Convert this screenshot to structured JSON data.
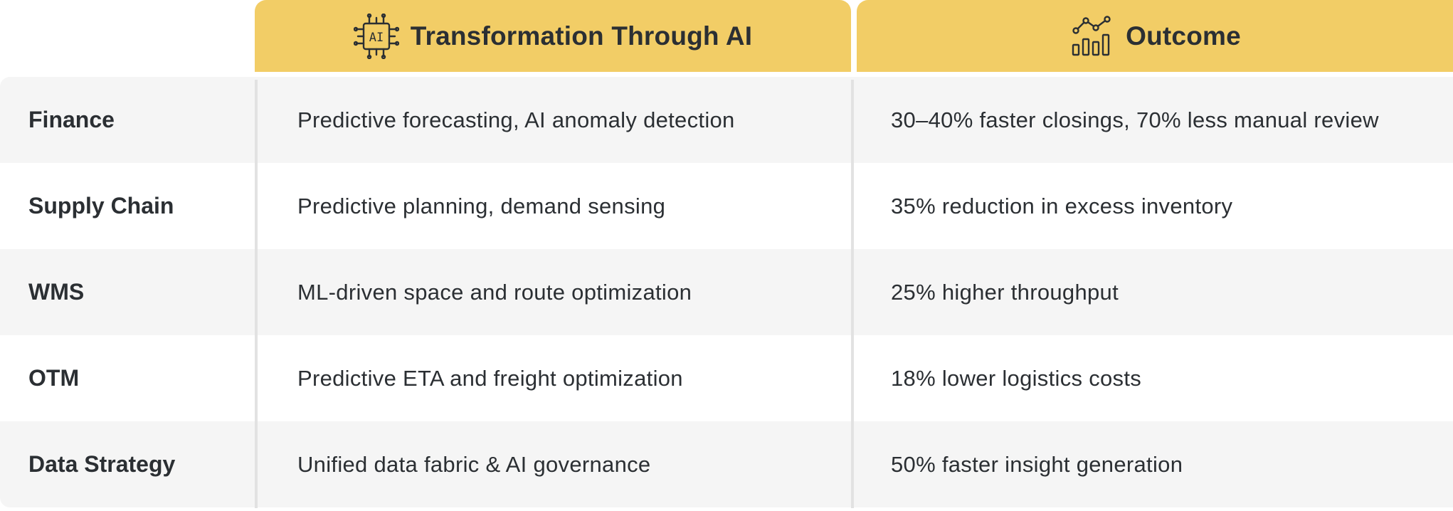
{
  "header": {
    "transformation": {
      "icon": "ai-chip-icon",
      "icon_text": "AI",
      "title": "Transformation Through AI"
    },
    "outcome": {
      "icon": "growth-chart-icon",
      "title": "Outcome"
    }
  },
  "rows": [
    {
      "area": "Finance",
      "transformation": "Predictive forecasting, AI anomaly detection",
      "outcome": "30–40% faster closings, 70% less manual review"
    },
    {
      "area": "Supply Chain",
      "transformation": "Predictive planning, demand sensing",
      "outcome": "35% reduction in excess inventory"
    },
    {
      "area": "WMS",
      "transformation": "ML-driven space and route optimization",
      "outcome": "25% higher throughput"
    },
    {
      "area": "OTM",
      "transformation": "Predictive ETA and freight optimization",
      "outcome": "18% lower logistics costs"
    },
    {
      "area": "Data Strategy",
      "transformation": "Unified data fabric & AI governance",
      "outcome": "50% faster insight generation"
    }
  ],
  "colors": {
    "header_bg": "#f2cd66",
    "row_shaded": "#f5f5f5",
    "text": "#2b2f33",
    "divider": "#e2e2e2"
  }
}
